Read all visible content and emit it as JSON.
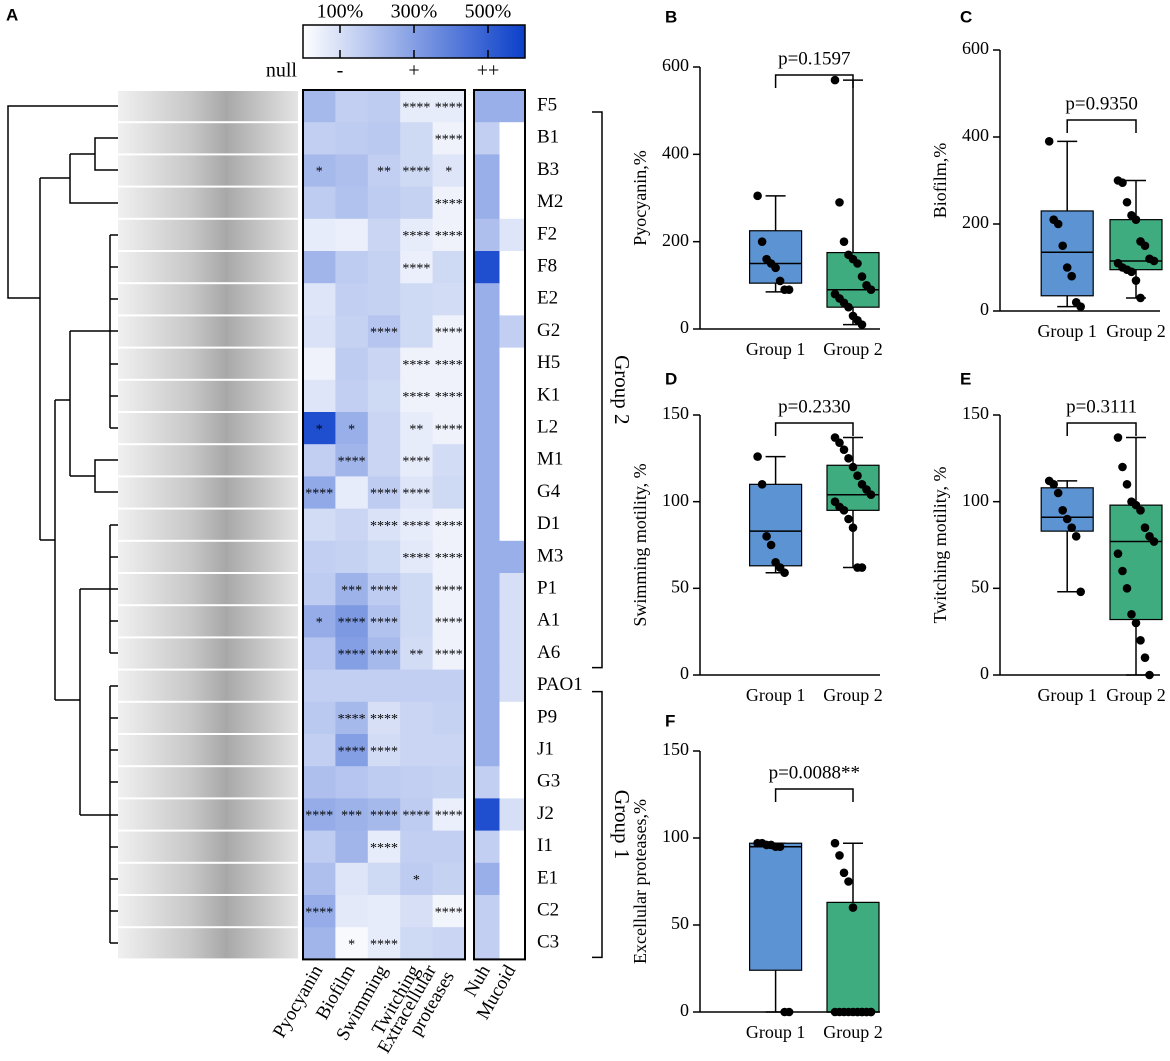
{
  "chart_data": [
    {
      "type": "heatmap",
      "panel": "A",
      "rows": [
        "F5",
        "B1",
        "B3",
        "M2",
        "F2",
        "F8",
        "E2",
        "G2",
        "H5",
        "K1",
        "L2",
        "M1",
        "G4",
        "D1",
        "M3",
        "P1",
        "A1",
        "A6",
        "PAO1",
        "P9",
        "J1",
        "G3",
        "J2",
        "I1",
        "E1",
        "C2",
        "C3"
      ],
      "columns": [
        "Pyocyanin",
        "Biofilm",
        "Swimming",
        "Twitching",
        [
          "Extracellular",
          "proteases"
        ]
      ],
      "values": [
        [
          220,
          150,
          160,
          60,
          60
        ],
        [
          150,
          160,
          170,
          120,
          40
        ],
        [
          220,
          200,
          150,
          120,
          80
        ],
        [
          160,
          190,
          160,
          140,
          40
        ],
        [
          60,
          50,
          130,
          60,
          40
        ],
        [
          230,
          160,
          140,
          50,
          120
        ],
        [
          80,
          150,
          140,
          120,
          110
        ],
        [
          90,
          140,
          180,
          120,
          40
        ],
        [
          40,
          160,
          130,
          40,
          40
        ],
        [
          80,
          150,
          120,
          40,
          40
        ],
        [
          550,
          250,
          130,
          60,
          40
        ],
        [
          150,
          230,
          130,
          60,
          110
        ],
        [
          270,
          60,
          160,
          80,
          120
        ],
        [
          110,
          130,
          90,
          60,
          40
        ],
        [
          150,
          140,
          120,
          70,
          40
        ],
        [
          160,
          240,
          160,
          120,
          40
        ],
        [
          260,
          320,
          190,
          120,
          40
        ],
        [
          180,
          300,
          220,
          110,
          40
        ],
        [
          150,
          150,
          150,
          150,
          150
        ],
        [
          170,
          220,
          100,
          130,
          140
        ],
        [
          150,
          300,
          110,
          130,
          130
        ],
        [
          200,
          180,
          160,
          150,
          140
        ],
        [
          260,
          240,
          220,
          160,
          50
        ],
        [
          160,
          230,
          60,
          150,
          150
        ],
        [
          200,
          80,
          120,
          160,
          140
        ],
        [
          260,
          70,
          60,
          100,
          30
        ],
        [
          230,
          20,
          60,
          120,
          130
        ]
      ],
      "annotations": [
        [
          null,
          null,
          null,
          "****",
          "****"
        ],
        [
          null,
          null,
          null,
          null,
          "****"
        ],
        [
          "*",
          null,
          "**",
          "****",
          "*"
        ],
        [
          null,
          null,
          null,
          null,
          "****"
        ],
        [
          null,
          null,
          null,
          "****",
          "****"
        ],
        [
          null,
          null,
          null,
          "****",
          null
        ],
        [
          null,
          null,
          null,
          null,
          null
        ],
        [
          null,
          null,
          "****",
          null,
          "****"
        ],
        [
          null,
          null,
          null,
          "****",
          "****"
        ],
        [
          null,
          null,
          null,
          "****",
          "****"
        ],
        [
          "*",
          "*",
          null,
          "**",
          "****"
        ],
        [
          null,
          "****",
          null,
          "****",
          null
        ],
        [
          "****",
          null,
          "****",
          "****",
          null
        ],
        [
          null,
          null,
          "****",
          "****",
          "****"
        ],
        [
          null,
          null,
          null,
          "****",
          "****"
        ],
        [
          null,
          "***",
          "****",
          null,
          "****"
        ],
        [
          "*",
          "****",
          "****",
          null,
          "****"
        ],
        [
          null,
          "****",
          "****",
          "**",
          "****"
        ],
        [
          null,
          null,
          null,
          null,
          null
        ],
        [
          null,
          "****",
          "****",
          null,
          null
        ],
        [
          null,
          "****",
          "****",
          null,
          null
        ],
        [
          null,
          null,
          null,
          null,
          null
        ],
        [
          "****",
          "***",
          "****",
          "****",
          "****"
        ],
        [
          null,
          null,
          "****",
          null,
          null
        ],
        [
          null,
          null,
          null,
          "*",
          null
        ],
        [
          "****",
          null,
          null,
          null,
          "****"
        ],
        [
          null,
          "*",
          "****",
          null,
          null
        ]
      ],
      "columns2": [
        "Nuh",
        "Mucoid"
      ],
      "values2": [
        [
          250,
          250
        ],
        [
          150,
          0
        ],
        [
          250,
          0
        ],
        [
          250,
          0
        ],
        [
          200,
          80
        ],
        [
          550,
          0
        ],
        [
          250,
          0
        ],
        [
          250,
          150
        ],
        [
          250,
          0
        ],
        [
          250,
          0
        ],
        [
          250,
          0
        ],
        [
          250,
          0
        ],
        [
          250,
          0
        ],
        [
          250,
          0
        ],
        [
          250,
          250
        ],
        [
          250,
          100
        ],
        [
          250,
          100
        ],
        [
          250,
          100
        ],
        [
          250,
          100
        ],
        [
          250,
          0
        ],
        [
          250,
          0
        ],
        [
          150,
          0
        ],
        [
          550,
          100
        ],
        [
          150,
          0
        ],
        [
          250,
          0
        ],
        [
          150,
          0
        ],
        [
          150,
          0
        ]
      ],
      "clim": [
        0,
        600
      ],
      "cticks": [
        {
          "value": 100,
          "label": "100%"
        },
        {
          "value": 300,
          "label": "300%"
        },
        {
          "value": 500,
          "label": "500%"
        }
      ],
      "levels": [
        {
          "value": 0,
          "label": "null"
        },
        {
          "value": 100,
          "label": "-"
        },
        {
          "value": 300,
          "label": "+"
        },
        {
          "value": 500,
          "label": "++"
        }
      ],
      "groups": [
        {
          "name": "Group 2",
          "from": "F5",
          "to": "A6"
        },
        {
          "name": "Group 1",
          "from": "PAO1",
          "to": "C3"
        }
      ]
    },
    {
      "type": "box",
      "panel": "B",
      "ylabel": "Pyocyanin,%",
      "categories": [
        "Group 1",
        "Group 2"
      ],
      "ylim": [
        0,
        600
      ],
      "yticks": [
        0,
        200,
        400,
        600
      ],
      "annotation": "p=0.1597",
      "boxes": [
        {
          "color": "#5b93d3",
          "min": 85,
          "q1": 105,
          "median": 150,
          "q3": 225,
          "max": 305,
          "points": [
            305,
            200,
            160,
            150,
            140,
            110,
            90,
            90
          ]
        },
        {
          "color": "#3fac7f",
          "min": 10,
          "q1": 50,
          "median": 90,
          "q3": 175,
          "max": 570,
          "points": [
            570,
            290,
            200,
            170,
            160,
            150,
            120,
            100,
            90,
            80,
            70,
            60,
            50,
            30,
            20,
            10
          ]
        }
      ]
    },
    {
      "type": "box",
      "panel": "C",
      "ylabel": "Biofilm,%",
      "categories": [
        "Group 1",
        "Group 2"
      ],
      "ylim": [
        0,
        600
      ],
      "yticks": [
        0,
        200,
        400,
        600
      ],
      "annotation": "p=0.9350",
      "boxes": [
        {
          "color": "#5b93d3",
          "min": 10,
          "q1": 35,
          "median": 135,
          "q3": 230,
          "max": 390,
          "points": [
            390,
            210,
            200,
            150,
            100,
            80,
            20,
            10
          ]
        },
        {
          "color": "#3fac7f",
          "min": 30,
          "q1": 95,
          "median": 115,
          "q3": 210,
          "max": 300,
          "points": [
            300,
            295,
            250,
            220,
            210,
            160,
            150,
            120,
            115,
            110,
            100,
            95,
            90,
            70,
            30
          ]
        }
      ]
    },
    {
      "type": "box",
      "panel": "D",
      "ylabel": "Swimming motility, %",
      "categories": [
        "Group 1",
        "Group 2"
      ],
      "ylim": [
        0,
        150
      ],
      "yticks": [
        0,
        50,
        100,
        150
      ],
      "annotation": "p=0.2330",
      "boxes": [
        {
          "color": "#5b93d3",
          "min": 59,
          "q1": 63,
          "median": 83,
          "q3": 110,
          "max": 126,
          "points": [
            126,
            110,
            80,
            75,
            65,
            62,
            59
          ]
        },
        {
          "color": "#3fac7f",
          "min": 62,
          "q1": 95,
          "median": 104,
          "q3": 121,
          "max": 137,
          "points": [
            137,
            134,
            130,
            125,
            120,
            115,
            110,
            107,
            104,
            100,
            97,
            95,
            90,
            85,
            62,
            62
          ]
        }
      ]
    },
    {
      "type": "box",
      "panel": "E",
      "ylabel": "Twitching motility, %",
      "categories": [
        "Group 1",
        "Group 2"
      ],
      "ylim": [
        0,
        150
      ],
      "yticks": [
        0,
        50,
        100,
        150
      ],
      "annotation": "p=0.3111",
      "boxes": [
        {
          "color": "#5b93d3",
          "min": 48,
          "q1": 83,
          "median": 91,
          "q3": 108,
          "max": 112,
          "points": [
            112,
            110,
            105,
            95,
            90,
            85,
            80,
            48
          ]
        },
        {
          "color": "#3fac7f",
          "min": 0,
          "q1": 32,
          "median": 77,
          "q3": 98,
          "max": 137,
          "points": [
            137,
            120,
            110,
            100,
            98,
            95,
            85,
            80,
            77,
            70,
            60,
            50,
            35,
            30,
            20,
            10,
            0
          ]
        }
      ]
    },
    {
      "type": "box",
      "panel": "F",
      "ylabel": "Excellular proteases,%",
      "categories": [
        "Group 1",
        "Group 2"
      ],
      "ylim": [
        0,
        150
      ],
      "yticks": [
        0,
        50,
        100,
        150
      ],
      "annotation": "p=0.0088**",
      "boxes": [
        {
          "color": "#5b93d3",
          "min": 0,
          "q1": 24,
          "median": 95,
          "q3": 97,
          "max": 97,
          "points": [
            97,
            97,
            96,
            96,
            95,
            95,
            0,
            0
          ]
        },
        {
          "color": "#3fac7f",
          "min": 0,
          "q1": 0,
          "median": 0,
          "q3": 63,
          "max": 97,
          "points": [
            97,
            90,
            80,
            75,
            60,
            0,
            0,
            0,
            0,
            0,
            0,
            0,
            0,
            0,
            0,
            0,
            0,
            0
          ]
        }
      ]
    }
  ]
}
